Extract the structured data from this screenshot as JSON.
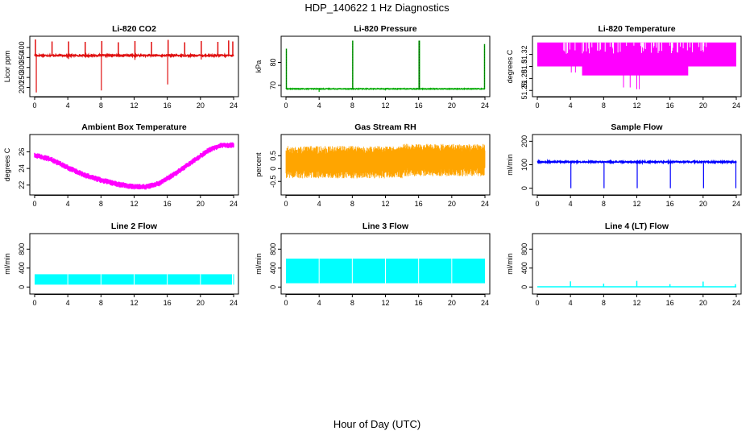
{
  "title": "HDP_140622  1 Hz Diagnostics",
  "xlabel": "Hour of Day (UTC)",
  "chart_data": [
    {
      "type": "line",
      "title": "Li-820 CO2",
      "ylabel": "Licor ppm",
      "color": "#e01010",
      "xlim": [
        0,
        24
      ],
      "xticks": [
        "0",
        "4",
        "8",
        "12",
        "16",
        "20",
        "24"
      ],
      "ylim": [
        170,
        440
      ],
      "yticks": [
        200,
        250,
        300,
        350,
        400
      ],
      "series": {
        "baseline": 360,
        "band": 8,
        "spikes_up": [
          [
            0.1,
            440
          ],
          [
            2.1,
            430
          ],
          [
            4.1,
            430
          ],
          [
            6.1,
            428
          ],
          [
            8.1,
            432
          ],
          [
            10.1,
            426
          ],
          [
            12.1,
            432
          ],
          [
            14.1,
            428
          ],
          [
            16.1,
            438
          ],
          [
            18.1,
            426
          ],
          [
            20.1,
            432
          ],
          [
            22.1,
            428
          ],
          [
            23.4,
            435
          ],
          [
            23.9,
            430
          ]
        ],
        "spikes_down": [
          [
            0.2,
            175
          ],
          [
            8.05,
            185
          ],
          [
            16.05,
            215
          ],
          [
            12.1,
            338
          ],
          [
            4.1,
            342
          ],
          [
            20.1,
            340
          ]
        ]
      }
    },
    {
      "type": "line",
      "title": "Li-820 Pressure",
      "ylabel": "kPa",
      "color": "#00aa00",
      "xlim": [
        0,
        24
      ],
      "xticks": [
        "0",
        "4",
        "8",
        "12",
        "16",
        "20",
        "24"
      ],
      "ylim": [
        66.5,
        90
      ],
      "yticks": [
        70,
        80
      ],
      "series": {
        "baseline": 68.5,
        "band": 0.3,
        "spikes_up": [
          [
            0.05,
            86
          ],
          [
            8.05,
            89.5
          ],
          [
            16.05,
            89.5
          ],
          [
            16.1,
            89.5
          ],
          [
            23.95,
            88
          ]
        ],
        "spikes_down": [
          [
            4.0,
            67.2
          ],
          [
            12.0,
            67.8
          ]
        ]
      }
    },
    {
      "type": "area",
      "title": "Li-820 Temperature",
      "ylabel": "degrees C",
      "color": "#ff00ff",
      "xlim": [
        0,
        24
      ],
      "xticks": [
        "0",
        "4",
        "8",
        "12",
        "16",
        "20",
        "24"
      ],
      "ylim": [
        51.255,
        51.345
      ],
      "yticks": [
        51.26,
        51.28,
        51.3,
        51.32
      ],
      "series": {
        "top": 51.34,
        "bottom": 51.3,
        "lower_band_from": 5.4,
        "lower_band_to": 18.2,
        "lower_bottom": 51.285,
        "dips": [
          [
            4.1,
            51.29
          ],
          [
            4.6,
            51.29
          ],
          [
            10.4,
            51.265
          ],
          [
            11.2,
            51.265
          ],
          [
            12.0,
            51.262
          ],
          [
            12.3,
            51.262
          ]
        ]
      }
    },
    {
      "type": "line",
      "title": "Ambient Box Temperature",
      "ylabel": "degrees C",
      "color": "#ff00ff",
      "xlim": [
        0,
        24
      ],
      "xticks": [
        "0",
        "4",
        "8",
        "12",
        "16",
        "20",
        "24"
      ],
      "ylim": [
        21.2,
        27.7
      ],
      "yticks": [
        22,
        24,
        26
      ],
      "series": {
        "x": [
          0,
          2,
          4,
          6,
          8,
          10,
          12,
          13.5,
          15,
          17,
          19,
          21,
          22.5,
          24
        ],
        "y": [
          25.6,
          25.1,
          24.1,
          23.2,
          22.6,
          22.1,
          21.8,
          21.8,
          22.2,
          23.4,
          24.8,
          26.2,
          26.8,
          26.8
        ],
        "band": 0.7
      }
    },
    {
      "type": "area",
      "title": "Gas Stream RH",
      "ylabel": "percent",
      "color": "#ffa500",
      "xlim": [
        0,
        24
      ],
      "xticks": [
        "0",
        "4",
        "8",
        "12",
        "16",
        "20",
        "24"
      ],
      "ylim": [
        -0.9,
        1.2
      ],
      "yticks": [
        -0.5,
        0.0,
        0.5
      ],
      "series": {
        "center": 0.25,
        "spread": 0.55
      }
    },
    {
      "type": "line",
      "title": "Sample Flow",
      "ylabel": "ml/min",
      "color": "#0000ff",
      "xlim": [
        0,
        24
      ],
      "xticks": [
        "0",
        "4",
        "8",
        "12",
        "16",
        "20",
        "24"
      ],
      "ylim": [
        -15,
        215
      ],
      "yticks": [
        0,
        100,
        200
      ],
      "series": {
        "baseline": 112,
        "band": 6,
        "spikes_down": [
          [
            4.05,
            0
          ],
          [
            8.05,
            0
          ],
          [
            12.05,
            0
          ],
          [
            16.05,
            0
          ],
          [
            20.05,
            0
          ],
          [
            23.95,
            0
          ]
        ]
      }
    },
    {
      "type": "area",
      "title": "Line 2 Flow",
      "ylabel": "ml/min",
      "color": "#00ffff",
      "xlim": [
        0,
        24
      ],
      "xticks": [
        "0",
        "4",
        "8",
        "12",
        "16",
        "20",
        "24"
      ],
      "ylim": [
        -80,
        1060
      ],
      "yticks": [
        0,
        400,
        800
      ],
      "series": {
        "top": 270,
        "bottom": 50,
        "gaps": [
          4.0,
          8.0,
          12.0,
          16.0,
          20.0
        ],
        "end": 23.8
      }
    },
    {
      "type": "area",
      "title": "Line 3 Flow",
      "ylabel": "ml/min",
      "color": "#00ffff",
      "xlim": [
        0,
        24
      ],
      "xticks": [
        "0",
        "4",
        "8",
        "12",
        "16",
        "20",
        "24"
      ],
      "ylim": [
        -80,
        1060
      ],
      "yticks": [
        0,
        400,
        800
      ],
      "series": {
        "top": 600,
        "bottom": 80,
        "gaps": [
          4.0,
          8.0,
          12.0,
          16.0,
          20.0
        ],
        "end": 24
      }
    },
    {
      "type": "line",
      "title": "Line 4 (LT) Flow",
      "ylabel": "ml/min",
      "color": "#00ffff",
      "xlim": [
        0,
        24
      ],
      "xticks": [
        "0",
        "4",
        "8",
        "12",
        "16",
        "20",
        "24"
      ],
      "ylim": [
        -80,
        1060
      ],
      "yticks": [
        0,
        400,
        800
      ],
      "series": {
        "baseline": 5,
        "spikes_up": [
          [
            4.0,
            120
          ],
          [
            8.0,
            70
          ],
          [
            12.0,
            130
          ],
          [
            16.0,
            60
          ],
          [
            20.0,
            115
          ],
          [
            23.9,
            60
          ]
        ]
      }
    }
  ]
}
